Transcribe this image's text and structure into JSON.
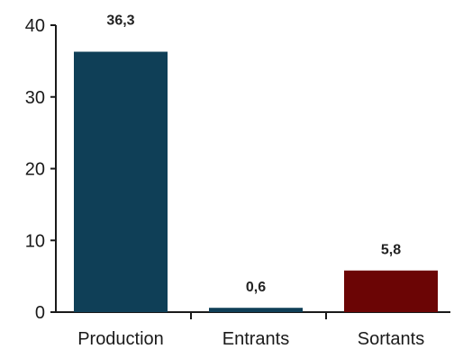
{
  "chart_data": {
    "type": "bar",
    "categories": [
      "Production",
      "Entrants",
      "Sortants"
    ],
    "values": [
      36.3,
      0.6,
      5.8
    ],
    "value_labels": [
      "36,3",
      "0,6",
      "5,8"
    ],
    "colors": [
      "#0f3f57",
      "#0f3f57",
      "#6b0505"
    ],
    "ylim": [
      0,
      40
    ],
    "yticks": [
      0,
      10,
      20,
      30,
      40
    ],
    "title": "",
    "xlabel": "",
    "ylabel": "",
    "grid": false,
    "legend": false
  }
}
